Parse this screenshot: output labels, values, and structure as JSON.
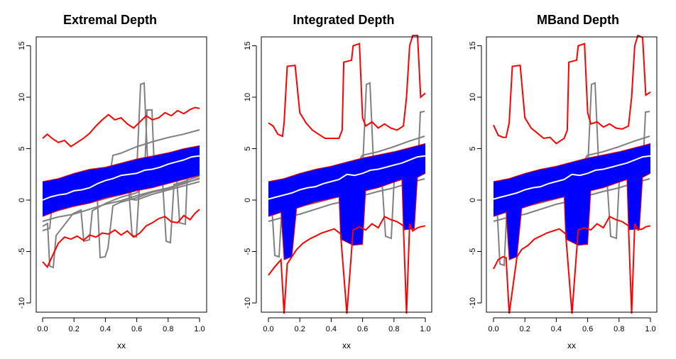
{
  "chart_data": [
    {
      "type": "functional-boxplot",
      "title": "Extremal Depth",
      "xlabel": "xx",
      "ylabel": "",
      "xlim": [
        0,
        1
      ],
      "ylim": [
        -11,
        16
      ],
      "x_ticks": [
        "0.0",
        "0.2",
        "0.4",
        "0.6",
        "0.8",
        "1.0"
      ],
      "y_ticks": [
        "-10",
        "-5",
        "0",
        "5",
        "10",
        "15"
      ],
      "series": [
        {
          "name": "upper-fence",
          "color": "#ff0000",
          "x": [
            0,
            0.03,
            0.06,
            0.1,
            0.14,
            0.18,
            0.22,
            0.26,
            0.3,
            0.34,
            0.38,
            0.42,
            0.46,
            0.5,
            0.54,
            0.58,
            0.62,
            0.66,
            0.7,
            0.74,
            0.78,
            0.82,
            0.86,
            0.9,
            0.94,
            0.97,
            1.0
          ],
          "y": [
            6.0,
            6.4,
            6.0,
            5.6,
            5.8,
            5.2,
            5.6,
            6.0,
            6.5,
            7.2,
            7.8,
            8.3,
            7.8,
            8.0,
            7.4,
            7.0,
            7.6,
            8.2,
            7.8,
            8.0,
            8.5,
            8.2,
            8.7,
            8.4,
            8.8,
            9.0,
            8.9
          ]
        },
        {
          "name": "lower-fence",
          "color": "#ff0000",
          "x": [
            0,
            0.03,
            0.06,
            0.1,
            0.14,
            0.18,
            0.22,
            0.26,
            0.3,
            0.34,
            0.38,
            0.42,
            0.46,
            0.5,
            0.54,
            0.58,
            0.62,
            0.66,
            0.7,
            0.74,
            0.78,
            0.82,
            0.86,
            0.9,
            0.94,
            0.97,
            1.0
          ],
          "y": [
            -6.0,
            -6.5,
            -5.5,
            -4.2,
            -3.6,
            -3.8,
            -3.5,
            -3.9,
            -3.4,
            -3.6,
            -3.2,
            -3.3,
            -2.9,
            -3.4,
            -3.0,
            -3.6,
            -3.2,
            -2.5,
            -2.2,
            -1.8,
            -1.6,
            -2.1,
            -2.2,
            -1.5,
            -1.9,
            -1.3,
            -0.9
          ]
        },
        {
          "name": "median",
          "color": "#ffffff",
          "x": [
            0,
            0.05,
            0.1,
            0.15,
            0.2,
            0.25,
            0.3,
            0.35,
            0.4,
            0.45,
            0.5,
            0.55,
            0.6,
            0.65,
            0.7,
            0.75,
            0.8,
            0.85,
            0.9,
            0.95,
            1.0
          ],
          "y": [
            0.0,
            0.3,
            0.5,
            0.6,
            0.9,
            1.0,
            1.2,
            1.6,
            1.9,
            2.1,
            2.4,
            2.5,
            2.6,
            2.9,
            3.0,
            3.2,
            3.5,
            3.7,
            3.9,
            4.2,
            4.3
          ]
        },
        {
          "name": "band-upper",
          "color": "#0000ff",
          "x": [
            0,
            0.1,
            0.2,
            0.3,
            0.4,
            0.5,
            0.6,
            0.7,
            0.8,
            0.9,
            1.0
          ],
          "y": [
            1.8,
            2.1,
            2.6,
            3.0,
            3.2,
            3.6,
            4.0,
            4.3,
            4.6,
            5.0,
            5.3
          ]
        },
        {
          "name": "band-lower",
          "color": "#0000ff",
          "x": [
            0,
            0.1,
            0.2,
            0.3,
            0.4,
            0.5,
            0.6,
            0.7,
            0.8,
            0.9,
            1.0
          ],
          "y": [
            -1.6,
            -1.0,
            -0.6,
            -0.3,
            0.2,
            0.5,
            0.9,
            1.2,
            1.6,
            2.0,
            2.4
          ]
        }
      ]
    },
    {
      "type": "functional-boxplot",
      "title": "Integrated Depth",
      "xlabel": "xx",
      "ylabel": "",
      "xlim": [
        0,
        1
      ],
      "ylim": [
        -11,
        16
      ],
      "x_ticks": [
        "0.0",
        "0.2",
        "0.4",
        "0.6",
        "0.8",
        "1.0"
      ],
      "y_ticks": [
        "-10",
        "-5",
        "0",
        "5",
        "10",
        "15"
      ],
      "series": [
        {
          "name": "upper-fence",
          "color": "#ff0000",
          "x": [
            0,
            0.03,
            0.06,
            0.09,
            0.1,
            0.12,
            0.17,
            0.2,
            0.24,
            0.28,
            0.32,
            0.36,
            0.4,
            0.45,
            0.47,
            0.48,
            0.53,
            0.54,
            0.58,
            0.6,
            0.62,
            0.66,
            0.7,
            0.74,
            0.78,
            0.82,
            0.86,
            0.88,
            0.9,
            0.92,
            0.95,
            0.97,
            1.0
          ],
          "y": [
            7.5,
            7.2,
            6.4,
            6.2,
            7.5,
            13.0,
            13.1,
            8.5,
            7.5,
            6.8,
            6.4,
            6.0,
            6.0,
            6.0,
            6.8,
            13.4,
            13.6,
            15.0,
            15.2,
            8.0,
            7.2,
            7.6,
            7.0,
            7.4,
            7.0,
            6.8,
            7.2,
            10.0,
            15.0,
            16.5,
            16.0,
            10.0,
            10.4
          ]
        },
        {
          "name": "lower-fence",
          "color": "#ff0000",
          "x": [
            0,
            0.04,
            0.08,
            0.1,
            0.12,
            0.15,
            0.18,
            0.22,
            0.26,
            0.3,
            0.34,
            0.38,
            0.42,
            0.46,
            0.5,
            0.54,
            0.58,
            0.62,
            0.66,
            0.7,
            0.74,
            0.78,
            0.82,
            0.86,
            0.88,
            0.9,
            0.92,
            0.95,
            0.97,
            1.0
          ],
          "y": [
            -7.3,
            -6.5,
            -5.8,
            -11.5,
            -6.2,
            -5.5,
            -4.8,
            -4.2,
            -3.8,
            -3.5,
            -3.2,
            -3.0,
            -2.8,
            -3.3,
            -11.5,
            -2.9,
            -2.6,
            -2.9,
            -2.3,
            -2.7,
            -1.6,
            -1.9,
            -2.1,
            -2.5,
            -11.5,
            -2.3,
            -3.0,
            -2.7,
            -2.6,
            -2.5
          ]
        },
        {
          "name": "median",
          "color": "#ffffff",
          "x": [
            0,
            0.05,
            0.1,
            0.15,
            0.2,
            0.25,
            0.3,
            0.35,
            0.4,
            0.45,
            0.5,
            0.55,
            0.6,
            0.65,
            0.7,
            0.75,
            0.8,
            0.85,
            0.9,
            0.95,
            1.0
          ],
          "y": [
            0.1,
            0.3,
            0.5,
            0.7,
            1.0,
            1.2,
            1.3,
            1.6,
            1.8,
            2.0,
            2.5,
            2.4,
            2.6,
            2.9,
            3.0,
            3.2,
            3.4,
            3.6,
            3.9,
            4.2,
            4.3
          ]
        },
        {
          "name": "band-upper",
          "color": "#0000ff",
          "x": [
            0,
            0.1,
            0.2,
            0.3,
            0.4,
            0.5,
            0.6,
            0.7,
            0.8,
            0.9,
            1.0
          ],
          "y": [
            1.8,
            2.1,
            2.6,
            3.0,
            3.3,
            3.7,
            4.1,
            4.4,
            4.7,
            5.1,
            5.5
          ]
        },
        {
          "name": "band-lower",
          "color": "#0000ff",
          "x": [
            0,
            0.08,
            0.1,
            0.15,
            0.18,
            0.3,
            0.45,
            0.46,
            0.54,
            0.6,
            0.62,
            0.7,
            0.85,
            0.86,
            0.93,
            0.95,
            1.0
          ],
          "y": [
            -1.6,
            -1.2,
            -5.8,
            -5.5,
            -0.8,
            -0.2,
            0.3,
            -3.8,
            -4.4,
            -4.3,
            0.9,
            1.2,
            2.0,
            -2.9,
            -2.8,
            2.2,
            2.6
          ]
        }
      ]
    },
    {
      "type": "functional-boxplot",
      "title": "MBand Depth",
      "xlabel": "xx",
      "ylabel": "",
      "xlim": [
        0,
        1
      ],
      "ylim": [
        -11,
        16
      ],
      "x_ticks": [
        "0.0",
        "0.2",
        "0.4",
        "0.6",
        "0.8",
        "1.0"
      ],
      "y_ticks": [
        "-10",
        "-5",
        "0",
        "5",
        "10",
        "15"
      ],
      "series": [
        {
          "name": "upper-fence",
          "color": "#ff0000",
          "x": [
            0,
            0.03,
            0.06,
            0.08,
            0.1,
            0.12,
            0.17,
            0.2,
            0.24,
            0.28,
            0.32,
            0.36,
            0.4,
            0.45,
            0.47,
            0.48,
            0.53,
            0.54,
            0.58,
            0.6,
            0.62,
            0.66,
            0.7,
            0.74,
            0.78,
            0.82,
            0.86,
            0.88,
            0.9,
            0.92,
            0.95,
            0.97,
            1.0
          ],
          "y": [
            7.3,
            6.3,
            6.1,
            6.1,
            7.5,
            13.0,
            13.1,
            8.0,
            7.0,
            6.5,
            6.0,
            6.1,
            5.5,
            6.0,
            6.8,
            13.4,
            13.6,
            15.0,
            15.2,
            8.5,
            7.4,
            7.6,
            7.1,
            7.4,
            7.0,
            6.9,
            7.2,
            10.0,
            15.0,
            16.5,
            15.8,
            10.2,
            10.5
          ]
        },
        {
          "name": "lower-fence",
          "color": "#ff0000",
          "x": [
            0,
            0.03,
            0.06,
            0.08,
            0.1,
            0.15,
            0.18,
            0.22,
            0.26,
            0.3,
            0.34,
            0.38,
            0.42,
            0.46,
            0.5,
            0.54,
            0.58,
            0.62,
            0.66,
            0.7,
            0.74,
            0.78,
            0.82,
            0.86,
            0.88,
            0.9,
            0.92,
            0.95,
            0.97,
            1.0
          ],
          "y": [
            -6.7,
            -5.8,
            -5.5,
            -5.6,
            -11.5,
            -5.5,
            -4.8,
            -4.4,
            -3.8,
            -3.5,
            -3.2,
            -3.0,
            -2.8,
            -3.3,
            -11.5,
            -2.9,
            -2.7,
            -2.9,
            -2.3,
            -2.7,
            -1.6,
            -1.9,
            -2.1,
            -2.5,
            -11.5,
            -2.3,
            -2.9,
            -2.8,
            -2.6,
            -2.5
          ]
        },
        {
          "name": "median",
          "color": "#ffffff",
          "x": [
            0,
            0.05,
            0.1,
            0.15,
            0.2,
            0.25,
            0.3,
            0.35,
            0.4,
            0.45,
            0.5,
            0.55,
            0.6,
            0.65,
            0.7,
            0.75,
            0.8,
            0.85,
            0.9,
            0.95,
            1.0
          ],
          "y": [
            0.1,
            0.3,
            0.5,
            0.7,
            1.0,
            1.2,
            1.3,
            1.6,
            1.8,
            2.0,
            2.5,
            2.4,
            2.6,
            2.9,
            3.0,
            3.2,
            3.4,
            3.6,
            3.9,
            4.2,
            4.3
          ]
        },
        {
          "name": "band-upper",
          "color": "#0000ff",
          "x": [
            0,
            0.1,
            0.2,
            0.3,
            0.4,
            0.5,
            0.6,
            0.7,
            0.8,
            0.9,
            1.0
          ],
          "y": [
            1.8,
            2.1,
            2.6,
            3.0,
            3.3,
            3.7,
            4.1,
            4.4,
            4.7,
            5.1,
            5.5
          ]
        },
        {
          "name": "band-lower",
          "color": "#0000ff",
          "x": [
            0,
            0.08,
            0.1,
            0.15,
            0.18,
            0.3,
            0.45,
            0.46,
            0.54,
            0.6,
            0.62,
            0.7,
            0.85,
            0.86,
            0.93,
            0.95,
            1.0
          ],
          "y": [
            -1.6,
            -1.2,
            -5.8,
            -5.5,
            -0.8,
            -0.2,
            0.3,
            -3.8,
            -4.4,
            -4.3,
            0.9,
            1.2,
            2.0,
            -2.9,
            -2.8,
            2.2,
            2.6
          ]
        }
      ]
    }
  ]
}
